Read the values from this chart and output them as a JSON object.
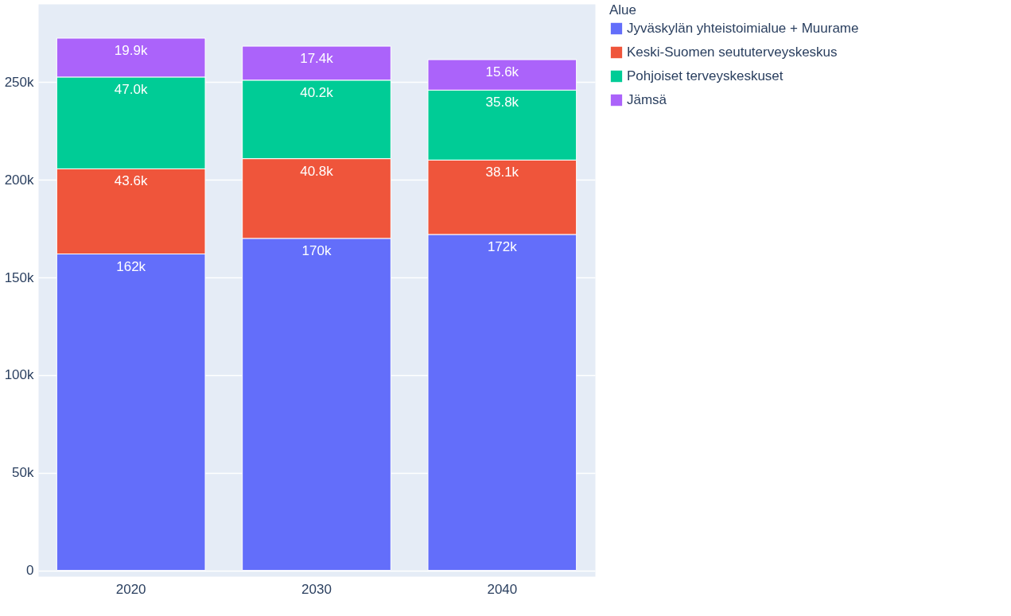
{
  "chart_data": {
    "type": "bar",
    "stacked": true,
    "legend_title": "Alue",
    "legend": "top right",
    "grid": "y",
    "categories": [
      "2020",
      "2030",
      "2040"
    ],
    "series": [
      {
        "name": "Jyväskylän yhteistoimialue + Muurame",
        "color": "#636efa",
        "values": [
          162000,
          170000,
          172000
        ],
        "value_labels": [
          "162k",
          "170k",
          "172k"
        ]
      },
      {
        "name": "Keski-Suomen seututerveyskeskus",
        "color": "#ef553b",
        "values": [
          43600,
          40800,
          38100
        ],
        "value_labels": [
          "43.6k",
          "40.8k",
          "38.1k"
        ]
      },
      {
        "name": "Pohjoiset terveyskeskuset",
        "color": "#00cc96",
        "values": [
          47000,
          40200,
          35800
        ],
        "value_labels": [
          "47.0k",
          "40.2k",
          "35.8k"
        ]
      },
      {
        "name": "Jämsä",
        "color": "#ab63fa",
        "values": [
          19900,
          17400,
          15600
        ],
        "value_labels": [
          "19.9k",
          "17.4k",
          "15.6k"
        ]
      }
    ],
    "ylim": [
      -3000,
      290000
    ],
    "yticks": [
      {
        "value": 0,
        "label": "0"
      },
      {
        "value": 50000,
        "label": "50k"
      },
      {
        "value": 100000,
        "label": "100k"
      },
      {
        "value": 150000,
        "label": "150k"
      },
      {
        "value": 200000,
        "label": "200k"
      },
      {
        "value": 250000,
        "label": "250k"
      }
    ]
  }
}
